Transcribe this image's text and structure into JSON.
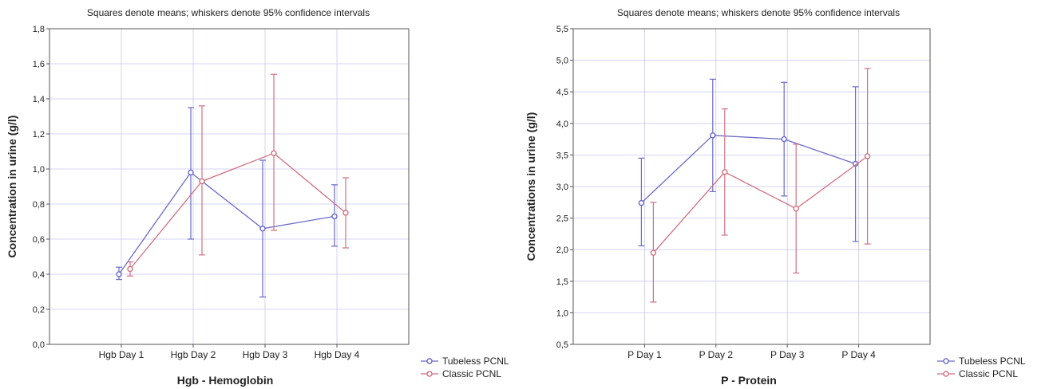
{
  "chart_data": [
    {
      "type": "line",
      "title": "Squares denote means; whiskers denote 95% confidence intervals",
      "xlabel": "Hgb - Hemoglobin",
      "ylabel": "Concentration in urine (g/l)",
      "categories": [
        "Hgb Day 1",
        "Hgb Day 2",
        "Hgb Day 3",
        "Hgb Day 4"
      ],
      "ylim": [
        0,
        1.8
      ],
      "yticks": [
        "0,0",
        "0,2",
        "0,4",
        "0,6",
        "0,8",
        "1,0",
        "1,2",
        "1,4",
        "1,6",
        "1,8"
      ],
      "grid": true,
      "legend_position": "bottom-right",
      "series": [
        {
          "name": "Tubeless PCNL",
          "color": "#6a6ac8",
          "values": [
            0.4,
            0.98,
            0.66,
            0.73
          ],
          "lower": [
            0.37,
            0.6,
            0.27,
            0.56
          ],
          "upper": [
            0.44,
            1.35,
            1.05,
            0.91
          ]
        },
        {
          "name": "Classic PCNL",
          "color": "#d07080",
          "values": [
            0.43,
            0.93,
            1.09,
            0.75
          ],
          "lower": [
            0.39,
            0.51,
            0.65,
            0.55
          ],
          "upper": [
            0.47,
            1.36,
            1.54,
            0.95
          ]
        }
      ]
    },
    {
      "type": "line",
      "title": "Squares denote means; whiskers denote 95% confidence intervals",
      "xlabel": "P - Protein",
      "ylabel": "Concentrations in urine (g/l)",
      "categories": [
        "P Day 1",
        "P Day 2",
        "P Day 3",
        "P Day 4"
      ],
      "ylim": [
        0.5,
        5.5
      ],
      "yticks": [
        "0,5",
        "1,0",
        "1,5",
        "2,0",
        "2,5",
        "3,0",
        "3,5",
        "4,0",
        "4,5",
        "5,0",
        "5,5"
      ],
      "grid": true,
      "legend_position": "bottom-right",
      "series": [
        {
          "name": "Tubeless PCNL",
          "color": "#6a6ac8",
          "values": [
            2.74,
            3.81,
            3.75,
            3.36
          ],
          "lower": [
            2.06,
            2.92,
            2.85,
            2.13
          ],
          "upper": [
            3.45,
            4.7,
            4.65,
            4.58
          ]
        },
        {
          "name": "Classic PCNL",
          "color": "#d07080",
          "values": [
            1.95,
            3.23,
            2.65,
            3.48
          ],
          "lower": [
            1.17,
            2.23,
            1.63,
            2.09
          ],
          "upper": [
            2.75,
            4.23,
            3.67,
            4.87
          ]
        }
      ]
    }
  ]
}
